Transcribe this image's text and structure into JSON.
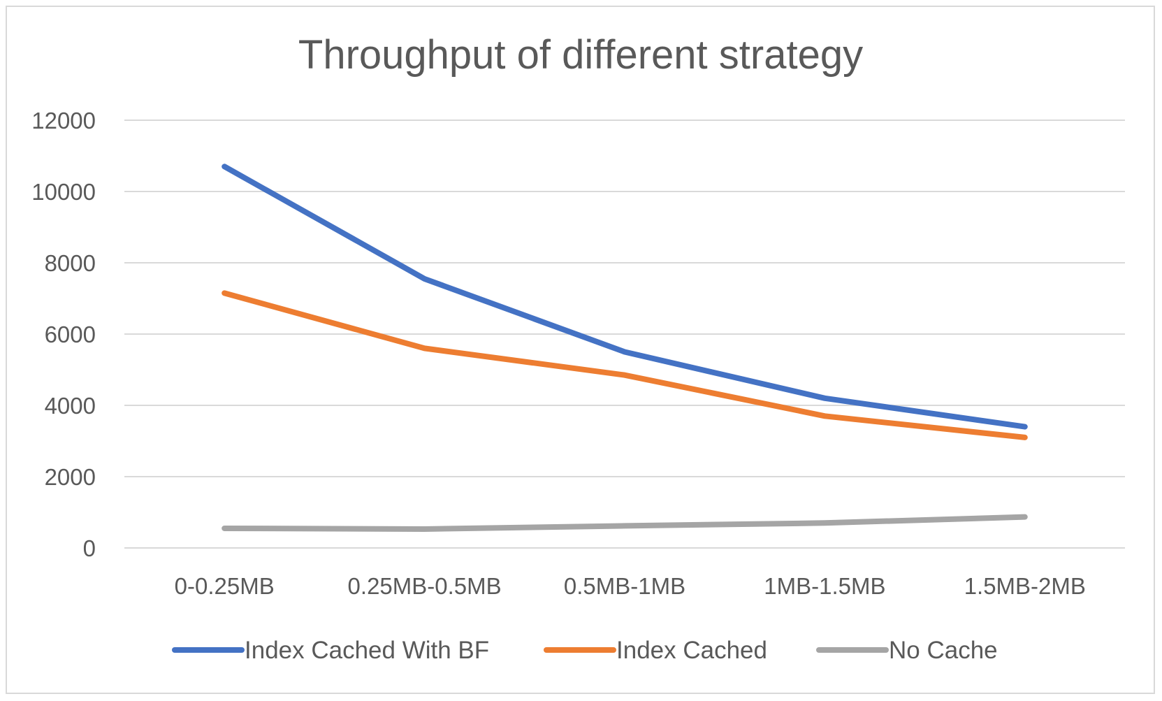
{
  "chart_data": {
    "type": "line",
    "title": "Throughput of different strategy",
    "xlabel": "",
    "ylabel": "",
    "categories": [
      "0-0.25MB",
      "0.25MB-0.5MB",
      "0.5MB-1MB",
      "1MB-1.5MB",
      "1.5MB-2MB"
    ],
    "ylim": [
      0,
      12000
    ],
    "yticks": [
      0,
      2000,
      4000,
      6000,
      8000,
      10000,
      12000
    ],
    "grid": true,
    "legend_position": "bottom",
    "series": [
      {
        "name": "Index Cached With BF",
        "color": "#4472C4",
        "values": [
          10700,
          7550,
          5500,
          4200,
          3400
        ]
      },
      {
        "name": "Index Cached",
        "color": "#ED7D31",
        "values": [
          7150,
          5600,
          4850,
          3700,
          3100
        ]
      },
      {
        "name": "No Cache",
        "color": "#A5A5A5",
        "values": [
          550,
          530,
          620,
          700,
          870
        ]
      }
    ]
  }
}
